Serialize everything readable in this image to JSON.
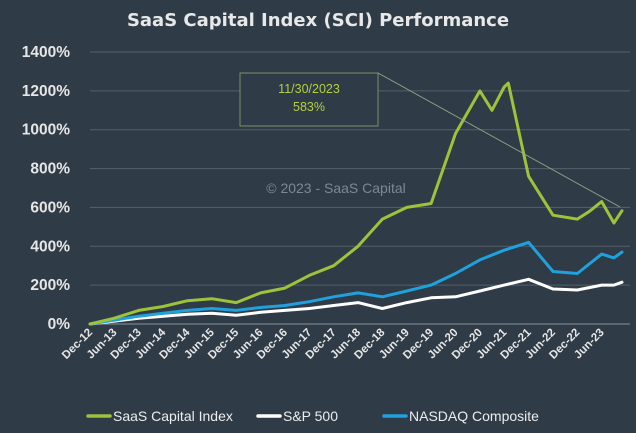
{
  "chart_data": {
    "type": "line",
    "title": "SaaS Capital Index (SCI) Performance",
    "watermark": "© 2023 - SaaS Capital",
    "annotation": {
      "date": "11/30/2023",
      "value": "583%"
    },
    "y_unit": "%",
    "ylim": [
      0,
      1400
    ],
    "yticks": [
      0,
      200,
      400,
      600,
      800,
      1000,
      1200,
      1400
    ],
    "ytick_labels": [
      "0%",
      "200%",
      "400%",
      "600%",
      "800%",
      "1000%",
      "1200%",
      "1400%"
    ],
    "grid": "horizontal",
    "legend_position": "bottom",
    "x_start": "Dec-12",
    "x_end": "Nov-23",
    "xtick_labels": [
      "Dec-12",
      "Jun-13",
      "Dec-13",
      "Jun-14",
      "Dec-14",
      "Jun-15",
      "Dec-15",
      "Jun-16",
      "Dec-16",
      "Jun-17",
      "Dec-17",
      "Jun-18",
      "Dec-18",
      "Jun-19",
      "Dec-19",
      "Jun-20",
      "Dec-20",
      "Jun-21",
      "Dec-21",
      "Jun-22",
      "Dec-22",
      "Jun-23"
    ],
    "xtick_months": [
      0,
      6,
      12,
      18,
      24,
      30,
      36,
      42,
      48,
      54,
      60,
      66,
      72,
      78,
      84,
      90,
      96,
      102,
      108,
      114,
      120,
      126
    ],
    "series": [
      {
        "name": "SaaS Capital Index",
        "color": "#9dc33b",
        "points": [
          [
            0,
            0
          ],
          [
            6,
            30
          ],
          [
            12,
            70
          ],
          [
            18,
            90
          ],
          [
            24,
            120
          ],
          [
            30,
            130
          ],
          [
            36,
            110
          ],
          [
            42,
            160
          ],
          [
            48,
            185
          ],
          [
            54,
            250
          ],
          [
            60,
            300
          ],
          [
            66,
            400
          ],
          [
            72,
            540
          ],
          [
            78,
            600
          ],
          [
            84,
            620
          ],
          [
            90,
            980
          ],
          [
            96,
            1200
          ],
          [
            99,
            1100
          ],
          [
            102,
            1220
          ],
          [
            103,
            1240
          ],
          [
            108,
            760
          ],
          [
            114,
            560
          ],
          [
            120,
            540
          ],
          [
            123,
            580
          ],
          [
            126,
            630
          ],
          [
            129,
            520
          ],
          [
            131,
            583
          ]
        ]
      },
      {
        "name": "S&P 500",
        "color": "#ffffff",
        "points": [
          [
            0,
            0
          ],
          [
            6,
            15
          ],
          [
            12,
            30
          ],
          [
            18,
            40
          ],
          [
            24,
            50
          ],
          [
            30,
            55
          ],
          [
            36,
            45
          ],
          [
            42,
            60
          ],
          [
            48,
            70
          ],
          [
            54,
            80
          ],
          [
            60,
            95
          ],
          [
            66,
            110
          ],
          [
            72,
            80
          ],
          [
            78,
            110
          ],
          [
            84,
            135
          ],
          [
            90,
            140
          ],
          [
            96,
            170
          ],
          [
            102,
            200
          ],
          [
            108,
            230
          ],
          [
            114,
            180
          ],
          [
            120,
            175
          ],
          [
            126,
            200
          ],
          [
            129,
            200
          ],
          [
            131,
            215
          ]
        ]
      },
      {
        "name": "NASDAQ Composite",
        "color": "#1fa2dc",
        "points": [
          [
            0,
            0
          ],
          [
            6,
            20
          ],
          [
            12,
            40
          ],
          [
            18,
            55
          ],
          [
            24,
            70
          ],
          [
            30,
            80
          ],
          [
            36,
            70
          ],
          [
            42,
            85
          ],
          [
            48,
            95
          ],
          [
            54,
            115
          ],
          [
            60,
            140
          ],
          [
            66,
            160
          ],
          [
            72,
            140
          ],
          [
            78,
            170
          ],
          [
            84,
            200
          ],
          [
            90,
            260
          ],
          [
            96,
            330
          ],
          [
            102,
            380
          ],
          [
            108,
            420
          ],
          [
            114,
            270
          ],
          [
            120,
            260
          ],
          [
            126,
            360
          ],
          [
            129,
            340
          ],
          [
            131,
            370
          ]
        ]
      }
    ]
  }
}
